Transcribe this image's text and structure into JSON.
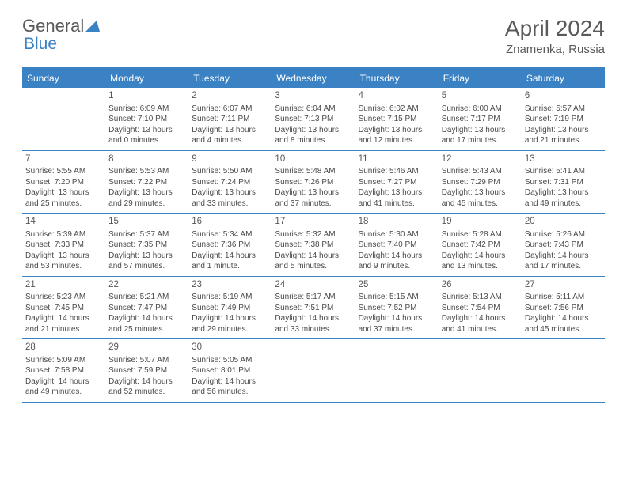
{
  "logo": {
    "part1": "General",
    "part2": "Blue"
  },
  "title": "April 2024",
  "location": "Znamenka, Russia",
  "accent_color": "#3b82c4",
  "text_color": "#4a4a4a",
  "heading_color": "#5a5a5a",
  "background_color": "#ffffff",
  "font_family": "Arial",
  "title_fontsize": 28,
  "location_fontsize": 15,
  "cell_fontsize": 10,
  "header_fontsize": 12,
  "day_headers": [
    "Sunday",
    "Monday",
    "Tuesday",
    "Wednesday",
    "Thursday",
    "Friday",
    "Saturday"
  ],
  "weeks": [
    [
      null,
      {
        "n": "1",
        "sr": "6:09 AM",
        "ss": "7:10 PM",
        "dl": "13 hours and 0 minutes."
      },
      {
        "n": "2",
        "sr": "6:07 AM",
        "ss": "7:11 PM",
        "dl": "13 hours and 4 minutes."
      },
      {
        "n": "3",
        "sr": "6:04 AM",
        "ss": "7:13 PM",
        "dl": "13 hours and 8 minutes."
      },
      {
        "n": "4",
        "sr": "6:02 AM",
        "ss": "7:15 PM",
        "dl": "13 hours and 12 minutes."
      },
      {
        "n": "5",
        "sr": "6:00 AM",
        "ss": "7:17 PM",
        "dl": "13 hours and 17 minutes."
      },
      {
        "n": "6",
        "sr": "5:57 AM",
        "ss": "7:19 PM",
        "dl": "13 hours and 21 minutes."
      }
    ],
    [
      {
        "n": "7",
        "sr": "5:55 AM",
        "ss": "7:20 PM",
        "dl": "13 hours and 25 minutes."
      },
      {
        "n": "8",
        "sr": "5:53 AM",
        "ss": "7:22 PM",
        "dl": "13 hours and 29 minutes."
      },
      {
        "n": "9",
        "sr": "5:50 AM",
        "ss": "7:24 PM",
        "dl": "13 hours and 33 minutes."
      },
      {
        "n": "10",
        "sr": "5:48 AM",
        "ss": "7:26 PM",
        "dl": "13 hours and 37 minutes."
      },
      {
        "n": "11",
        "sr": "5:46 AM",
        "ss": "7:27 PM",
        "dl": "13 hours and 41 minutes."
      },
      {
        "n": "12",
        "sr": "5:43 AM",
        "ss": "7:29 PM",
        "dl": "13 hours and 45 minutes."
      },
      {
        "n": "13",
        "sr": "5:41 AM",
        "ss": "7:31 PM",
        "dl": "13 hours and 49 minutes."
      }
    ],
    [
      {
        "n": "14",
        "sr": "5:39 AM",
        "ss": "7:33 PM",
        "dl": "13 hours and 53 minutes."
      },
      {
        "n": "15",
        "sr": "5:37 AM",
        "ss": "7:35 PM",
        "dl": "13 hours and 57 minutes."
      },
      {
        "n": "16",
        "sr": "5:34 AM",
        "ss": "7:36 PM",
        "dl": "14 hours and 1 minute."
      },
      {
        "n": "17",
        "sr": "5:32 AM",
        "ss": "7:38 PM",
        "dl": "14 hours and 5 minutes."
      },
      {
        "n": "18",
        "sr": "5:30 AM",
        "ss": "7:40 PM",
        "dl": "14 hours and 9 minutes."
      },
      {
        "n": "19",
        "sr": "5:28 AM",
        "ss": "7:42 PM",
        "dl": "14 hours and 13 minutes."
      },
      {
        "n": "20",
        "sr": "5:26 AM",
        "ss": "7:43 PM",
        "dl": "14 hours and 17 minutes."
      }
    ],
    [
      {
        "n": "21",
        "sr": "5:23 AM",
        "ss": "7:45 PM",
        "dl": "14 hours and 21 minutes."
      },
      {
        "n": "22",
        "sr": "5:21 AM",
        "ss": "7:47 PM",
        "dl": "14 hours and 25 minutes."
      },
      {
        "n": "23",
        "sr": "5:19 AM",
        "ss": "7:49 PM",
        "dl": "14 hours and 29 minutes."
      },
      {
        "n": "24",
        "sr": "5:17 AM",
        "ss": "7:51 PM",
        "dl": "14 hours and 33 minutes."
      },
      {
        "n": "25",
        "sr": "5:15 AM",
        "ss": "7:52 PM",
        "dl": "14 hours and 37 minutes."
      },
      {
        "n": "26",
        "sr": "5:13 AM",
        "ss": "7:54 PM",
        "dl": "14 hours and 41 minutes."
      },
      {
        "n": "27",
        "sr": "5:11 AM",
        "ss": "7:56 PM",
        "dl": "14 hours and 45 minutes."
      }
    ],
    [
      {
        "n": "28",
        "sr": "5:09 AM",
        "ss": "7:58 PM",
        "dl": "14 hours and 49 minutes."
      },
      {
        "n": "29",
        "sr": "5:07 AM",
        "ss": "7:59 PM",
        "dl": "14 hours and 52 minutes."
      },
      {
        "n": "30",
        "sr": "5:05 AM",
        "ss": "8:01 PM",
        "dl": "14 hours and 56 minutes."
      },
      null,
      null,
      null,
      null
    ]
  ],
  "labels": {
    "sunrise": "Sunrise:",
    "sunset": "Sunset:",
    "daylight": "Daylight:"
  }
}
